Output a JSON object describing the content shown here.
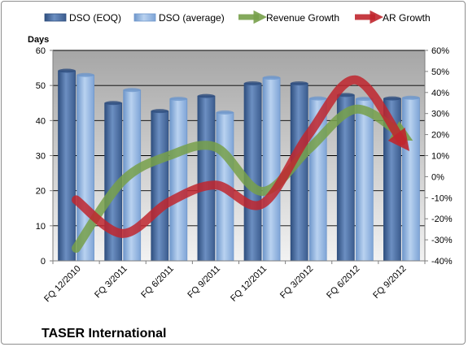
{
  "chart_data": {
    "type": "bar",
    "title": "",
    "company": "TASER International",
    "categories": [
      "FQ 12/2010",
      "FQ 3/2011",
      "FQ 6/2011",
      "FQ 9/2011",
      "FQ 12/2011",
      "FQ 3/2012",
      "FQ 6/2012",
      "FQ 9/2012"
    ],
    "ylabel": "Days",
    "ylim": [
      0,
      60
    ],
    "yticks": [
      "0",
      "10",
      "20",
      "30",
      "40",
      "50",
      "60"
    ],
    "y2lim": [
      -40,
      60
    ],
    "y2ticks": [
      "-40%",
      "-30%",
      "-20%",
      "-10%",
      "0%",
      "10%",
      "20%",
      "30%",
      "40%",
      "50%",
      "60%"
    ],
    "series": [
      {
        "name": "DSO (EOQ)",
        "kind": "bar",
        "axis": "left",
        "color": "#4f6f9f",
        "values": [
          54.2,
          45.0,
          42.7,
          47.0,
          50.6,
          50.6,
          47.3,
          46.3
        ]
      },
      {
        "name": "DSO (average)",
        "kind": "bar",
        "axis": "left",
        "color": "#8fb4e3",
        "values": [
          53.0,
          48.7,
          46.2,
          42.3,
          52.2,
          46.3,
          46.2,
          46.5
        ]
      },
      {
        "name": "Revenue Growth",
        "kind": "line",
        "axis": "right",
        "color": "#77a04a",
        "values": [
          -34,
          -2,
          10,
          14,
          -7,
          13,
          32,
          20
        ]
      },
      {
        "name": "AR Growth",
        "kind": "line",
        "axis": "right",
        "color": "#c0262e",
        "values": [
          -11,
          -27,
          -12,
          -4,
          -13,
          20,
          46,
          17
        ]
      }
    ],
    "grid": true,
    "legend": "top"
  }
}
